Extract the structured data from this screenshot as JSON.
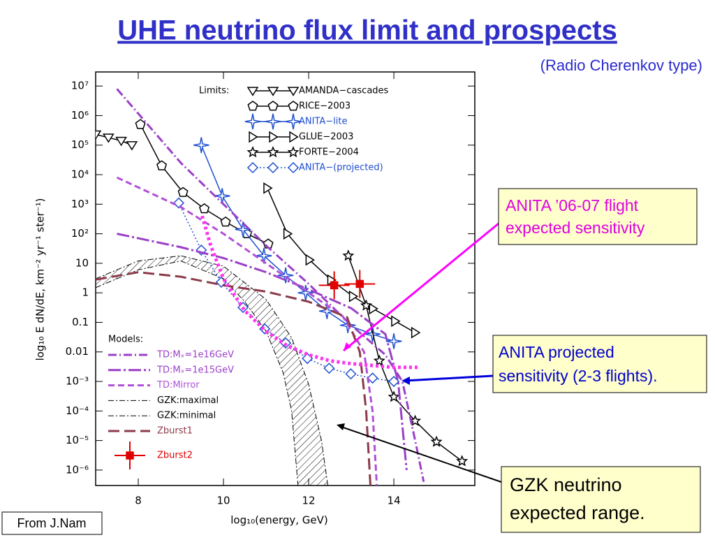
{
  "slide": {
    "title": "UHE neutrino flux limit and prospects",
    "subtitle": "(Radio Cherenkov type)",
    "callouts": [
      [
        "ANITA ’06-07 flight",
        "expected sensitivity"
      ],
      [
        "ANITA projected",
        "sensitivity (2-3 flights)."
      ],
      [
        "GZK neutrino",
        "expected range."
      ]
    ],
    "credit": "From J.Nam"
  },
  "chart_data": {
    "type": "line",
    "x_label": "log₁₀(energy, GeV)",
    "y_label": "log₁₀ E dN/dE, km⁻² yr⁻¹ ster⁻¹)",
    "legend_titles": {
      "limit": "Limits:",
      "model": "Models:"
    },
    "xlim": [
      7,
      15.9
    ],
    "xticks": [
      8,
      10,
      12,
      14
    ],
    "ylim": [
      3e-07,
      30000000.0
    ],
    "y_scale": "log",
    "yticks": [
      {
        "value": 10000000.0,
        "label": "10⁷"
      },
      {
        "value": 1000000.0,
        "label": "10⁶"
      },
      {
        "value": 100000.0,
        "label": "10⁵"
      },
      {
        "value": 10000.0,
        "label": "10⁴"
      },
      {
        "value": 1000.0,
        "label": "10³"
      },
      {
        "value": 100,
        "label": "10²"
      },
      10,
      1,
      0.1,
      0.01,
      {
        "value": 0.001,
        "label": "10⁻³"
      },
      {
        "value": 0.0001,
        "label": "10⁻⁴"
      },
      {
        "value": 1e-05,
        "label": "10⁻⁵"
      },
      {
        "value": 1e-06,
        "label": "10⁻⁶"
      }
    ],
    "series": [
      {
        "name": "AMANDA−cascades",
        "kind": "limit",
        "color": "#000000",
        "marker": "triangle-down",
        "linestyle": "solid",
        "x": [
          7,
          7.3,
          7.6,
          7.85
        ],
        "values": [
          230000,
          180000,
          140000,
          100000
        ]
      },
      {
        "name": "RICE−2003",
        "kind": "limit",
        "color": "#000000",
        "marker": "pentagon",
        "linestyle": "solid",
        "x": [
          8.05,
          8.55,
          9.05,
          9.55,
          10.05,
          10.55,
          11.05
        ],
        "values": [
          500000,
          20000,
          2500,
          700,
          250,
          100,
          45
        ]
      },
      {
        "name": "ANITA−lite",
        "kind": "limit",
        "color": "#1f4fd0",
        "marker": "star4",
        "linestyle": "solid",
        "x": [
          9.48,
          9.97,
          10.46,
          10.95,
          11.46,
          11.93,
          12.43,
          12.92,
          13.5,
          14.0
        ],
        "values": [
          100000,
          1900,
          140,
          18,
          3.9,
          1,
          0.24,
          0.08,
          0.04,
          0.023
        ]
      },
      {
        "name": "GLUE−2003",
        "kind": "limit",
        "color": "#000000",
        "marker": "triangle-right",
        "linestyle": "solid",
        "x": [
          11.03,
          11.5,
          12.02,
          12.53,
          13.04,
          13.51,
          14.03,
          14.5
        ],
        "values": [
          3500,
          100,
          13,
          2.7,
          0.76,
          0.29,
          0.11,
          0.045
        ]
      },
      {
        "name": "FORTE−2004",
        "kind": "limit",
        "color": "#000000",
        "marker": "star",
        "linestyle": "solid",
        "x": [
          12.93,
          13.35,
          13.66,
          14.0,
          14.5,
          15.0,
          15.6
        ],
        "values": [
          18,
          0.37,
          0.005,
          0.0003,
          4.6e-05,
          9e-06,
          2e-06
        ]
      },
      {
        "name": "ANITA−(projected)",
        "kind": "limit",
        "color": "#1f4fd0",
        "marker": "diamond",
        "linestyle": "dotted",
        "x": [
          8.95,
          9.48,
          9.95,
          10.46,
          10.97,
          11.46,
          11.97,
          12.48,
          12.99,
          13.5,
          14.0
        ],
        "values": [
          1100,
          28,
          2.3,
          0.32,
          0.06,
          0.02,
          0.006,
          0.0028,
          0.0018,
          0.0013,
          0.001
        ]
      },
      {
        "name": "TD:Mₓ=1e16GeV",
        "kind": "model",
        "color": "#9b3fc9",
        "linestyle": "dashdot",
        "x": [
          7.5,
          9,
          10,
          11,
          12,
          13,
          13.8,
          14.2,
          14.5,
          14.7
        ],
        "values": [
          8000000,
          25000,
          1000,
          40,
          2,
          0.08,
          0.008,
          0.001,
          1e-05,
          4e-07
        ]
      },
      {
        "name": "TD:Mₓ=1e15GeV",
        "kind": "model",
        "color": "#9b3fc9",
        "linestyle": "longdashdot",
        "x": [
          7.5,
          9,
          10,
          11,
          12,
          13,
          13.8,
          14.1,
          14.3
        ],
        "values": [
          100,
          35,
          15,
          5,
          1.3,
          0.3,
          0.04,
          0.001,
          1e-06
        ]
      },
      {
        "name": "TD:Mirror",
        "kind": "model",
        "color": "#b04fd8",
        "linestyle": "dashed",
        "x": [
          7.5,
          9,
          10,
          11,
          12,
          12.8,
          13.3,
          13.5,
          13.6
        ],
        "values": [
          8000,
          800,
          100,
          10,
          1,
          0.16,
          0.01,
          0.0001,
          3e-07
        ]
      },
      {
        "name": "GZK:maximal",
        "kind": "model",
        "color": "#000000",
        "linestyle": "dashdot-thin",
        "x": [
          7,
          8,
          9,
          10,
          11,
          11.6,
          12,
          12.3,
          12.45
        ],
        "values": [
          3,
          12,
          18,
          8,
          0.6,
          0.03,
          0.0008,
          1e-05,
          3e-07
        ]
      },
      {
        "name": "GZK:minimal",
        "kind": "model",
        "color": "#000000",
        "linestyle": "dashdot-thin",
        "x": [
          7,
          8,
          9,
          10,
          10.5,
          11,
          11.4,
          11.6,
          11.75
        ],
        "values": [
          1.5,
          6,
          12,
          3,
          0.5,
          0.05,
          0.002,
          0.0001,
          3e-07
        ]
      },
      {
        "name": "Zburst1",
        "kind": "model",
        "color": "#8b3a4a",
        "linestyle": "longdashed",
        "x": [
          7,
          8,
          9,
          10,
          11,
          12,
          12.9,
          13.2,
          13.35,
          13.45
        ],
        "values": [
          2.8,
          5,
          3.5,
          1.8,
          1.1,
          0.5,
          0.15,
          0.01,
          0.0001,
          3e-07
        ]
      },
      {
        "name": "Zburst2",
        "kind": "model",
        "color": "#e00000",
        "marker": "square",
        "linestyle": "none",
        "x": [
          12.6,
          13.2
        ],
        "values": [
          1.8,
          2
        ]
      },
      {
        "kind": "model",
        "color": "#ff33ee",
        "linestyle": "thickdotted",
        "x": [
          9.5,
          9.7,
          10,
          10.5,
          11,
          11.5,
          12,
          12.5,
          13,
          14,
          14.6
        ],
        "values": [
          400,
          40,
          3,
          0.25,
          0.05,
          0.016,
          0.008,
          0.005,
          0.004,
          0.003,
          0.003
        ]
      }
    ]
  }
}
